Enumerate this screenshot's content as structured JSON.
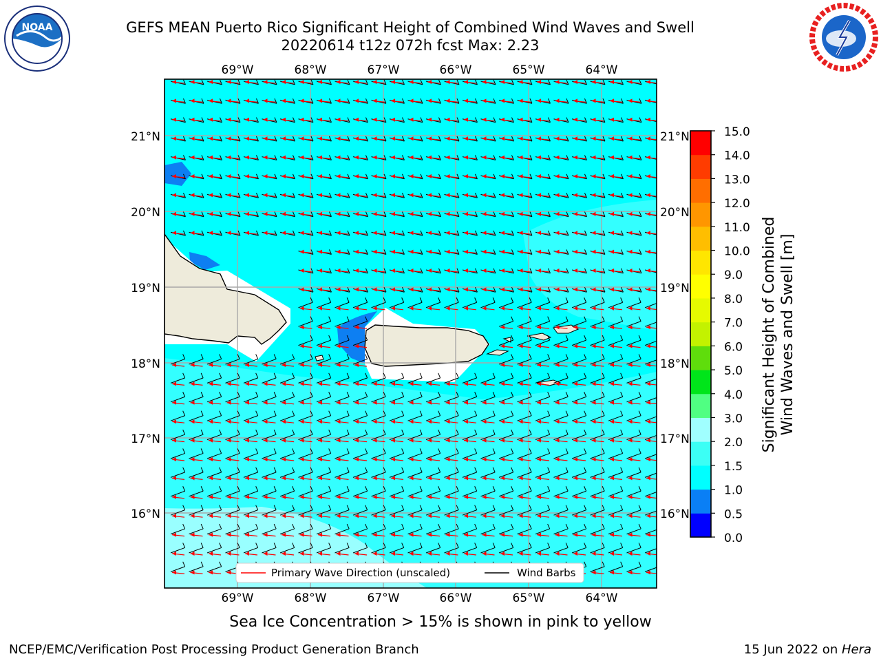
{
  "title": {
    "line1": "GEFS MEAN Puerto Rico Significant Height of Combined Wind Waves and Swell",
    "line2": "20220614 t12z 072h fcst   Max: 2.23"
  },
  "logos": {
    "left": "noaa-logo",
    "right": "nws-logo",
    "left_text": "NOAA"
  },
  "map": {
    "lon_labels": [
      "69°W",
      "68°W",
      "67°W",
      "66°W",
      "65°W",
      "64°W"
    ],
    "lat_labels": [
      "21°N",
      "20°N",
      "19°N",
      "18°N",
      "17°N",
      "16°N"
    ],
    "legend": {
      "wave_label": "Primary Wave Direction (unscaled)",
      "barb_label": "Wind Barbs"
    },
    "colors": {
      "land": "#eeebdb",
      "ocean_mid": "#00ffff",
      "ocean_low": "#33ffff",
      "ocean_high": "#99ffff",
      "shallow": "#0d7ff2",
      "wave_arrow": "#ff0000",
      "barb": "#000000"
    }
  },
  "colorbar": {
    "label_line1": "Significant Height of Combined",
    "label_line2": "Wind Waves and Swell [m]",
    "ticks": [
      "0.0",
      "0.5",
      "1.0",
      "1.5",
      "2.0",
      "3.0",
      "4.0",
      "5.0",
      "6.0",
      "7.0",
      "8.0",
      "9.0",
      "10.0",
      "11.0",
      "12.0",
      "13.0",
      "14.0",
      "15.0"
    ],
    "colors": [
      "#0000ff",
      "#0a7ff5",
      "#00ffff",
      "#3cfff5",
      "#a0ffff",
      "#50ff82",
      "#00e51a",
      "#5fdd0c",
      "#c3f200",
      "#e6fa00",
      "#ffff00",
      "#ffe600",
      "#ffbe00",
      "#ff9600",
      "#ff6e00",
      "#ff3c00",
      "#ff0000"
    ]
  },
  "note": "Sea Ice Concentration > 15% is shown in pink to yellow",
  "footer": {
    "left": "NCEP/EMC/Verification Post Processing Product Generation Branch",
    "date": "15 Jun 2022 on ",
    "machine": "Hera"
  }
}
